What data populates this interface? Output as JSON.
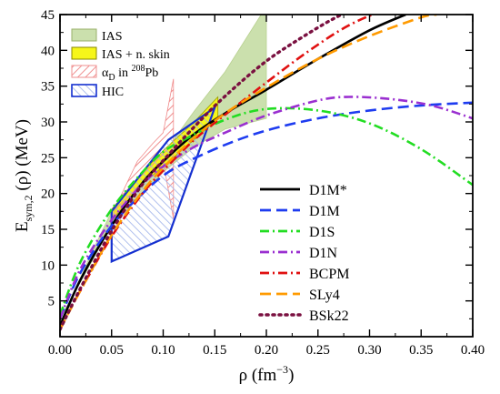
{
  "chart_data": {
    "type": "line",
    "xlabel": "ρ (fm",
    "xlabel_sup": "−3",
    "xlabel_end": ")",
    "ylabel": "E",
    "ylabel_sub": "sym,2",
    "ylabel_end": " (ρ) (MeV)",
    "xlim": [
      0.0,
      0.4
    ],
    "ylim": [
      0,
      45
    ],
    "xticks": [
      "0.00",
      "0.05",
      "0.10",
      "0.15",
      "0.20",
      "0.25",
      "0.30",
      "0.35",
      "0.40"
    ],
    "xtick_values": [
      0.0,
      0.05,
      0.1,
      0.15,
      0.2,
      0.25,
      0.3,
      0.35,
      0.4
    ],
    "yticks": [
      "5",
      "10",
      "15",
      "20",
      "25",
      "30",
      "35",
      "40",
      "45"
    ],
    "ytick_values": [
      5,
      10,
      15,
      20,
      25,
      30,
      35,
      40,
      45
    ],
    "legend_location": "lower-right",
    "series": [
      {
        "name": "D1M*",
        "color": "#000000",
        "dash": "solid",
        "x": [
          0.0,
          0.02,
          0.05,
          0.08,
          0.1,
          0.13,
          0.16,
          0.2,
          0.25,
          0.3,
          0.335
        ],
        "y": [
          1.5,
          8.0,
          15.5,
          21.5,
          24.5,
          28.3,
          31.2,
          34.5,
          38.8,
          42.8,
          45.0
        ]
      },
      {
        "name": "D1M",
        "color": "#1e3cf0",
        "dash": "longdash",
        "x": [
          0.0,
          0.02,
          0.05,
          0.08,
          0.1,
          0.12,
          0.16,
          0.2,
          0.25,
          0.3,
          0.35,
          0.4
        ],
        "y": [
          2.5,
          9.0,
          15.5,
          20.0,
          22.5,
          24.2,
          26.8,
          28.8,
          30.5,
          31.6,
          32.3,
          32.7
        ]
      },
      {
        "name": "D1S",
        "color": "#22dd22",
        "dash": "dashdot",
        "x": [
          0.0,
          0.02,
          0.05,
          0.08,
          0.1,
          0.12,
          0.16,
          0.2,
          0.25,
          0.3,
          0.35,
          0.4
        ],
        "y": [
          3.0,
          10.5,
          17.8,
          23.0,
          25.8,
          27.5,
          30.3,
          31.8,
          31.6,
          29.8,
          26.2,
          21.2
        ]
      },
      {
        "name": "D1N",
        "color": "#9a2fd0",
        "dash": "dashdot",
        "x": [
          0.0,
          0.02,
          0.05,
          0.08,
          0.1,
          0.13,
          0.16,
          0.2,
          0.25,
          0.28,
          0.32,
          0.36,
          0.4
        ],
        "y": [
          2.5,
          9.5,
          16.3,
          21.3,
          23.8,
          26.5,
          28.5,
          30.9,
          33.0,
          33.5,
          33.2,
          32.3,
          30.5
        ]
      },
      {
        "name": "BCPM",
        "color": "#e01010",
        "dash": "dashdot",
        "x": [
          0.0,
          0.02,
          0.05,
          0.08,
          0.1,
          0.13,
          0.16,
          0.2,
          0.24,
          0.28,
          0.32
        ],
        "y": [
          1.0,
          6.5,
          14.0,
          20.0,
          23.2,
          27.5,
          31.0,
          35.5,
          39.8,
          43.5,
          46.0
        ]
      },
      {
        "name": "SLy4",
        "color": "#ff9a00",
        "dash": "longdash",
        "x": [
          0.0,
          0.02,
          0.05,
          0.08,
          0.1,
          0.13,
          0.16,
          0.2,
          0.25,
          0.3,
          0.35,
          0.365
        ],
        "y": [
          1.0,
          6.5,
          14.2,
          20.3,
          23.6,
          27.8,
          31.2,
          34.8,
          38.8,
          42.0,
          44.6,
          45.0
        ]
      },
      {
        "name": "BSk22",
        "color": "#7a1040",
        "dash": "dotted",
        "x": [
          0.0,
          0.02,
          0.05,
          0.08,
          0.1,
          0.13,
          0.16,
          0.2,
          0.24,
          0.27,
          0.29
        ],
        "y": [
          1.0,
          6.8,
          14.8,
          21.3,
          24.6,
          29.3,
          33.6,
          38.5,
          42.3,
          44.8,
          46.0
        ]
      }
    ],
    "bands": [
      {
        "name": "IAS",
        "kind": "fill",
        "fill": "#cbe0ad",
        "stroke": "#b8d08f",
        "polygon": [
          [
            0.0,
            2.5
          ],
          [
            0.05,
            15.5
          ],
          [
            0.1,
            23.0
          ],
          [
            0.13,
            26.5
          ],
          [
            0.16,
            29.0
          ],
          [
            0.2,
            30.5
          ],
          [
            0.2,
            45.0
          ],
          [
            0.195,
            45.0
          ],
          [
            0.16,
            37.0
          ],
          [
            0.13,
            31.5
          ],
          [
            0.1,
            25.5
          ],
          [
            0.05,
            17.5
          ],
          [
            0.03,
            11.5
          ],
          [
            0.01,
            5.0
          ]
        ]
      },
      {
        "name": "IAS + n. skin",
        "kind": "fill",
        "fill": "#f6f61a",
        "stroke": "#999900",
        "polygon": [
          [
            0.05,
            16.2
          ],
          [
            0.08,
            21.3
          ],
          [
            0.1,
            23.8
          ],
          [
            0.13,
            27.5
          ],
          [
            0.153,
            30.5
          ],
          [
            0.153,
            33.5
          ],
          [
            0.13,
            30.0
          ],
          [
            0.1,
            26.0
          ],
          [
            0.08,
            23.0
          ],
          [
            0.05,
            17.8
          ]
        ]
      },
      {
        "name": "α",
        "name_sub": "D",
        "name_mid": " in ",
        "name_sup": "208",
        "name_end": "Pb",
        "kind": "hatch",
        "fill": "#f3b3b3",
        "stroke": "#f08a8a",
        "polygon": [
          [
            0.1,
            24.5
          ],
          [
            0.11,
            16.5
          ],
          [
            0.11,
            36.0
          ],
          [
            0.1,
            28.5
          ],
          [
            0.09,
            27.0
          ],
          [
            0.075,
            24.5
          ],
          [
            0.06,
            20.0
          ],
          [
            0.05,
            16.5
          ]
        ]
      },
      {
        "name": "HIC",
        "kind": "hatch",
        "fill": "#c4d0f2",
        "stroke": "#1530d0",
        "polygon": [
          [
            0.05,
            10.5
          ],
          [
            0.105,
            14.0
          ],
          [
            0.15,
            32.0
          ],
          [
            0.105,
            27.5
          ],
          [
            0.05,
            17.5
          ]
        ]
      }
    ]
  }
}
